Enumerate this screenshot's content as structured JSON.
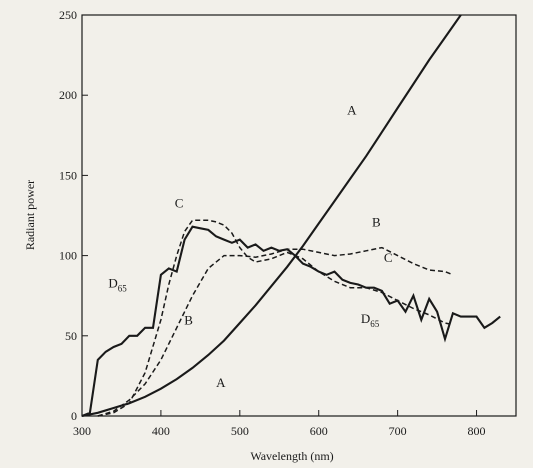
{
  "chart_data": {
    "type": "line",
    "title": "",
    "xlabel": "Wavelength (nm)",
    "ylabel": "Radiant power",
    "xlim": [
      300,
      850
    ],
    "ylim": [
      0,
      250
    ],
    "xticks": [
      300,
      400,
      500,
      600,
      700,
      800
    ],
    "yticks": [
      0,
      50,
      100,
      150,
      200,
      250
    ],
    "grid": false,
    "legend": "none",
    "series": [
      {
        "name": "A",
        "style": "solid",
        "x": [
          300,
          320,
          340,
          360,
          380,
          400,
          420,
          440,
          460,
          480,
          500,
          520,
          540,
          560,
          580,
          600,
          620,
          640,
          660,
          680,
          700,
          720,
          740,
          760,
          780
        ],
        "y": [
          0,
          2,
          5,
          8,
          12,
          17,
          23,
          30,
          38,
          47,
          58,
          69,
          81,
          93,
          106,
          120,
          134,
          148,
          162,
          177,
          192,
          207,
          222,
          236,
          250
        ]
      },
      {
        "name": "B",
        "style": "dashed",
        "x": [
          320,
          340,
          360,
          380,
          400,
          420,
          440,
          460,
          480,
          500,
          520,
          540,
          560,
          580,
          600,
          620,
          640,
          660,
          680,
          700,
          720,
          740,
          760,
          770
        ],
        "y": [
          0,
          3,
          10,
          20,
          35,
          55,
          75,
          92,
          100,
          100,
          99,
          101,
          104,
          104,
          102,
          100,
          101,
          103,
          105,
          100,
          95,
          91,
          90,
          88
        ]
      },
      {
        "name": "C",
        "style": "dashed",
        "x": [
          320,
          340,
          360,
          380,
          400,
          410,
          420,
          430,
          440,
          450,
          460,
          470,
          480,
          490,
          500,
          510,
          520,
          540,
          560,
          580,
          600,
          620,
          640,
          660,
          680,
          700,
          720,
          740,
          760,
          770
        ],
        "y": [
          0,
          2,
          8,
          27,
          60,
          82,
          100,
          115,
          122,
          122,
          122,
          121,
          119,
          114,
          105,
          99,
          96,
          98,
          102,
          98,
          90,
          84,
          80,
          80,
          77,
          72,
          67,
          63,
          58,
          57
        ]
      },
      {
        "name": "D",
        "label_subscript": "65",
        "style": "solid",
        "x": [
          300,
          310,
          320,
          330,
          340,
          350,
          360,
          370,
          380,
          390,
          400,
          410,
          420,
          430,
          440,
          450,
          460,
          470,
          480,
          490,
          500,
          510,
          520,
          530,
          540,
          550,
          560,
          570,
          580,
          590,
          600,
          610,
          620,
          630,
          640,
          650,
          660,
          670,
          680,
          690,
          700,
          710,
          720,
          730,
          740,
          750,
          760,
          770,
          780,
          790,
          800,
          810,
          820,
          830
        ],
        "y": [
          0,
          2,
          35,
          40,
          43,
          45,
          50,
          50,
          55,
          55,
          88,
          92,
          90,
          110,
          118,
          117,
          116,
          112,
          110,
          108,
          110,
          105,
          107,
          103,
          105,
          103,
          104,
          100,
          95,
          93,
          90,
          88,
          90,
          85,
          83,
          82,
          80,
          80,
          78,
          70,
          72,
          65,
          75,
          60,
          73,
          65,
          48,
          64,
          62,
          62,
          62,
          55,
          58,
          62
        ]
      }
    ],
    "annotations": [
      {
        "series": "A",
        "text": "A",
        "x": 642,
        "y": 188
      },
      {
        "series": "A",
        "text": "A",
        "x": 476,
        "y": 18
      },
      {
        "series": "B",
        "text": "B",
        "x": 673,
        "y": 118
      },
      {
        "series": "B",
        "text": "B",
        "x": 435,
        "y": 57
      },
      {
        "series": "C",
        "text": "C",
        "x": 688,
        "y": 96
      },
      {
        "series": "C",
        "text": "C",
        "x": 423,
        "y": 130
      },
      {
        "series": "D",
        "text": "D",
        "subscript": "65",
        "x": 345,
        "y": 80
      },
      {
        "series": "D",
        "text": "D",
        "subscript": "65",
        "x": 665,
        "y": 58
      }
    ]
  }
}
